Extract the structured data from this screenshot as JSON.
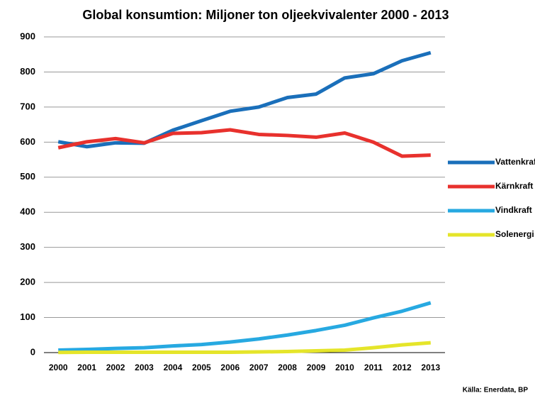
{
  "chart_data": {
    "type": "line",
    "title": "Global konsumtion: Miljoner ton oljeekvivalenter 2000 - 2013",
    "source": "Källa: Enerdata, BP",
    "categories": [
      "2000",
      "2001",
      "2002",
      "2003",
      "2004",
      "2005",
      "2006",
      "2007",
      "2008",
      "2009",
      "2010",
      "2011",
      "2012",
      "2013"
    ],
    "series": [
      {
        "name": "Vattenkraft",
        "color": "#1a6fba",
        "values": [
          601,
          587,
          598,
          597,
          634,
          661,
          688,
          700,
          727,
          737,
          783,
          795,
          832,
          855
        ]
      },
      {
        "name": "Kärnkraft",
        "color": "#e8312d",
        "values": [
          584,
          601,
          610,
          598,
          625,
          627,
          635,
          622,
          619,
          614,
          626,
          600,
          560,
          563
        ]
      },
      {
        "name": "Vindkraft",
        "color": "#27a9e1",
        "values": [
          7,
          9,
          12,
          14,
          19,
          23,
          30,
          39,
          50,
          63,
          78,
          99,
          118,
          142
        ]
      },
      {
        "name": "Solenergi",
        "color": "#e5e52a",
        "values": [
          0.5,
          1,
          1,
          1,
          1,
          1,
          1,
          2,
          3,
          5,
          7,
          14,
          22,
          28
        ]
      }
    ],
    "ylim": [
      0,
      900
    ],
    "yticks": [
      0,
      100,
      200,
      300,
      400,
      500,
      600,
      700,
      800,
      900
    ],
    "grid": true,
    "legend": "right"
  }
}
